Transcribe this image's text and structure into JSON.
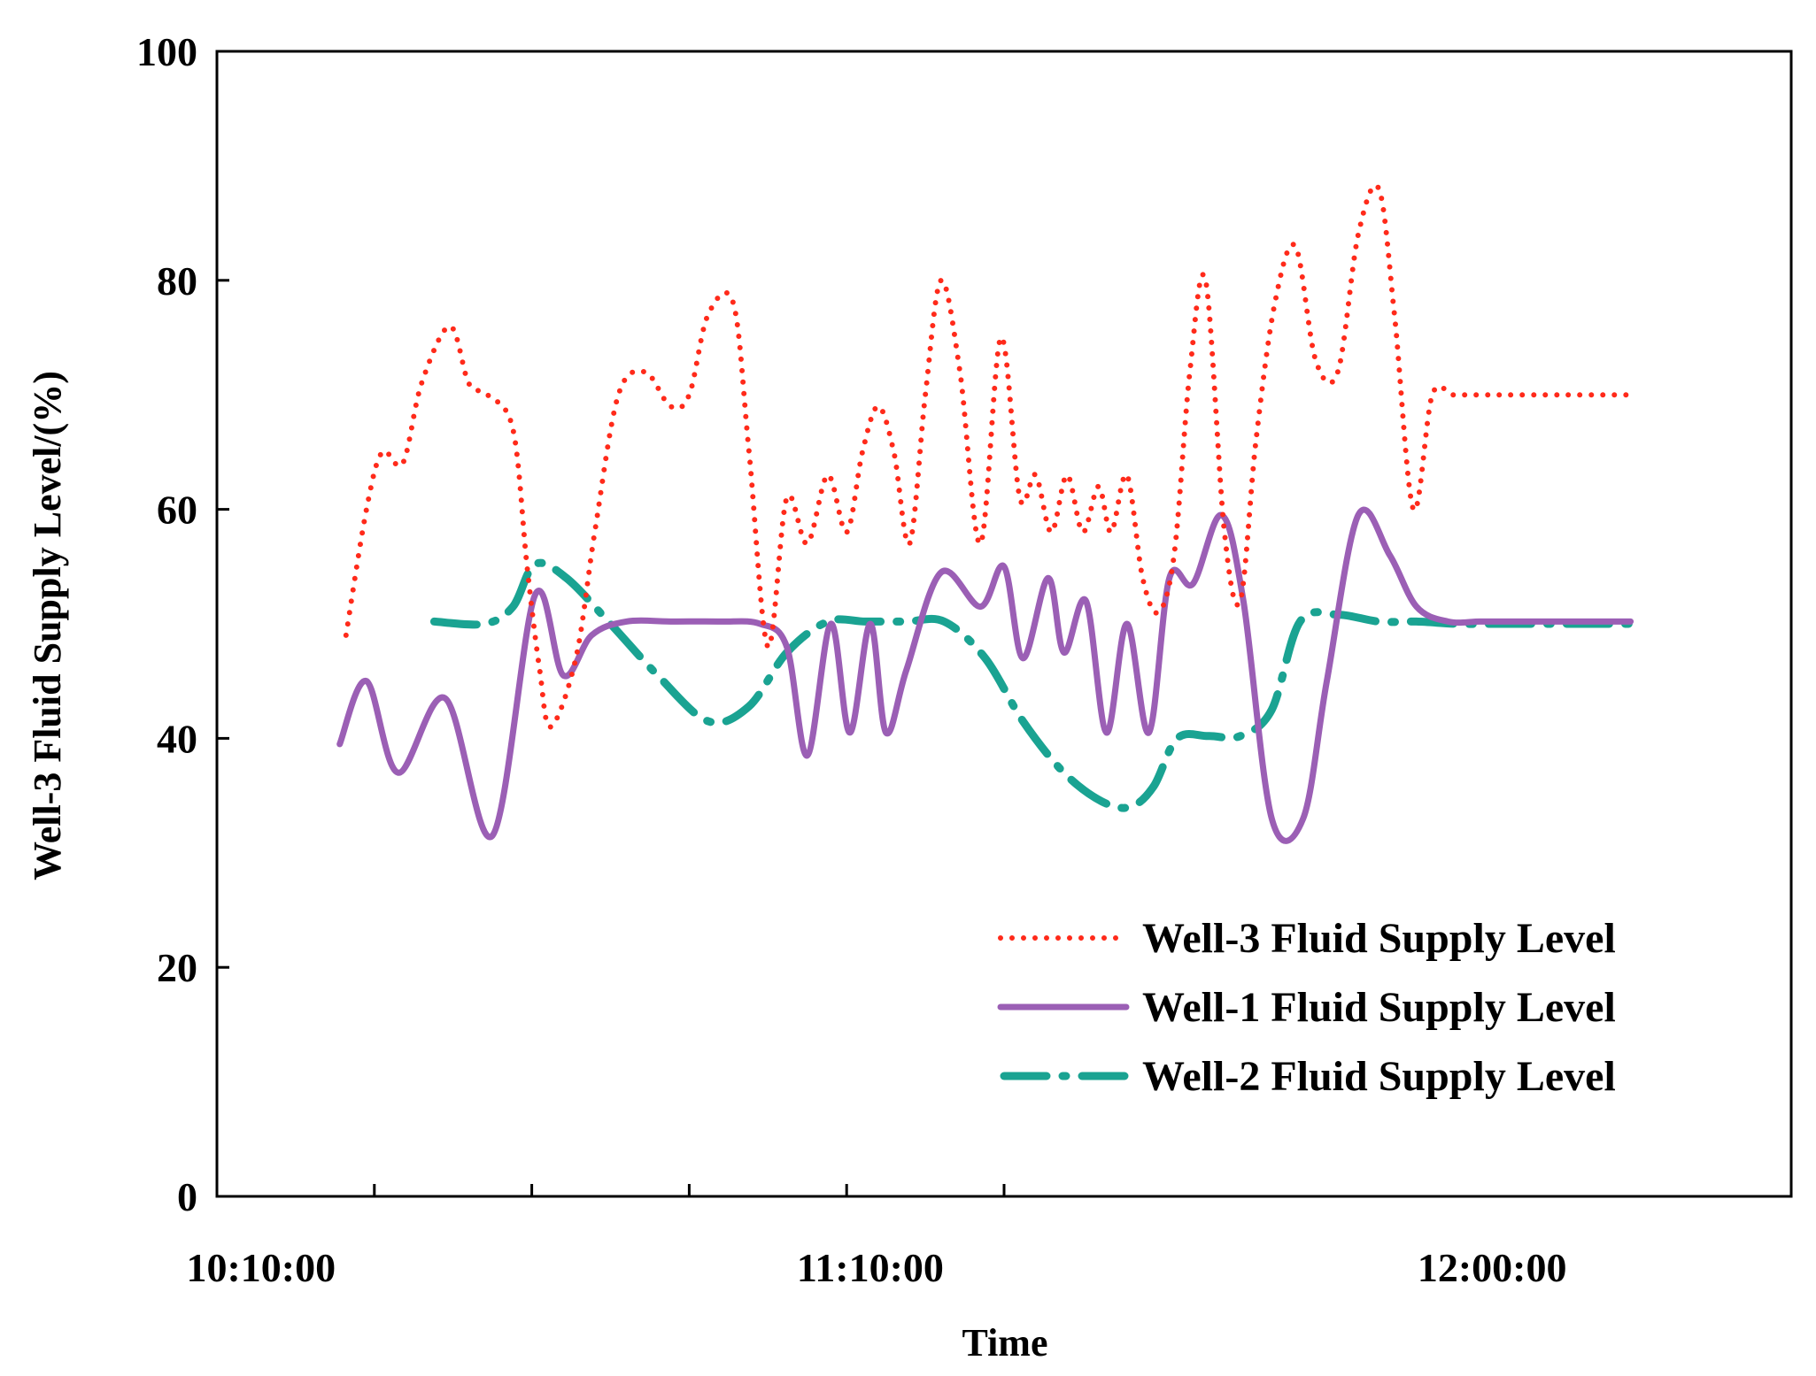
{
  "chart_data": {
    "type": "line",
    "title": "",
    "xlabel": "Time",
    "ylabel": "Well-3 Fluid Supply Level/(%)",
    "xlim": [
      0,
      10
    ],
    "ylim": [
      0,
      100
    ],
    "yticks": [
      0,
      20,
      40,
      60,
      80,
      100
    ],
    "xticks": [
      1,
      2,
      3,
      4,
      5
    ],
    "xtick_labels": [
      {
        "x": 0.28,
        "label": "10:10:00"
      },
      {
        "x": 4.15,
        "label": "11:10:00"
      },
      {
        "x": 8.1,
        "label": "12:00:00"
      }
    ],
    "grid": false,
    "legend_position": "bottom-right",
    "series": [
      {
        "name": "Well-3 Fluid Supply Level",
        "color": "#ff2a1a",
        "style": "dotted",
        "x": [
          0.82,
          0.95,
          1.05,
          1.18,
          1.3,
          1.48,
          1.6,
          1.72,
          1.88,
          1.97,
          2.05,
          2.12,
          2.28,
          2.4,
          2.55,
          2.72,
          2.88,
          3.0,
          3.12,
          3.28,
          3.38,
          3.5,
          3.62,
          3.75,
          3.88,
          4.0,
          4.1,
          4.2,
          4.3,
          4.4,
          4.5,
          4.6,
          4.72,
          4.85,
          4.98,
          5.1,
          5.2,
          5.3,
          5.4,
          5.5,
          5.6,
          5.68,
          5.78,
          5.88,
          5.98,
          6.08,
          6.18,
          6.28,
          6.4,
          6.5,
          6.6,
          6.72,
          6.85,
          6.98,
          7.12,
          7.25,
          7.38,
          7.48,
          7.6,
          7.72,
          7.85,
          7.95,
          8.08,
          8.2,
          8.35,
          8.48,
          8.6,
          8.75,
          8.88,
          8.98
        ],
        "values": [
          49,
          60,
          65,
          64,
          71,
          76,
          71,
          70,
          67,
          55,
          46,
          41,
          47,
          58,
          70,
          72,
          69,
          70,
          77,
          78,
          65,
          48,
          61,
          57,
          63,
          58,
          65,
          69,
          65,
          57,
          70,
          80,
          72,
          57,
          75,
          61,
          63,
          58,
          63,
          58,
          62,
          58,
          63,
          54,
          51,
          56,
          72,
          80,
          58,
          52,
          66,
          78,
          83,
          73,
          72,
          84,
          88,
          77,
          60,
          70,
          70,
          70,
          70,
          70,
          70,
          70,
          70,
          70,
          70,
          70
        ]
      },
      {
        "name": "Well-1 Fluid Supply Level",
        "color": "#9b5fb5",
        "style": "solid",
        "x": [
          0.78,
          0.95,
          1.15,
          1.45,
          1.75,
          2.02,
          2.2,
          2.38,
          2.6,
          2.9,
          3.2,
          3.45,
          3.62,
          3.75,
          3.9,
          4.02,
          4.15,
          4.25,
          4.38,
          4.6,
          4.85,
          5.0,
          5.12,
          5.28,
          5.38,
          5.52,
          5.65,
          5.78,
          5.92,
          6.05,
          6.2,
          6.38,
          6.52,
          6.7,
          6.9,
          7.05,
          7.25,
          7.45,
          7.62,
          7.82,
          8.02,
          8.2,
          8.45,
          8.72,
          8.98
        ],
        "values": [
          39.5,
          45,
          37,
          43.5,
          31.5,
          52.5,
          45.5,
          49,
          50.2,
          50.2,
          50.2,
          50,
          48,
          38.5,
          50,
          40.5,
          50,
          40.5,
          46,
          54.5,
          51.5,
          55,
          47,
          54,
          47.5,
          52,
          40.5,
          50,
          40.5,
          54,
          53.5,
          59.5,
          52,
          33,
          33,
          45,
          59.5,
          56,
          51.5,
          50.2,
          50.2,
          50.2,
          50.2,
          50.2,
          50.2
        ]
      },
      {
        "name": "Well-2 Fluid Supply Level",
        "color": "#1aa392",
        "style": "dashdot",
        "x": [
          1.38,
          1.7,
          1.88,
          2.02,
          2.22,
          2.5,
          2.8,
          3.12,
          3.38,
          3.62,
          3.88,
          4.12,
          4.38,
          4.62,
          4.88,
          5.12,
          5.38,
          5.62,
          5.8,
          5.95,
          6.1,
          6.3,
          6.5,
          6.7,
          6.88,
          7.12,
          7.38,
          7.62,
          7.88,
          8.12,
          8.38,
          8.62,
          8.98
        ],
        "values": [
          50.2,
          50,
          51.5,
          55.2,
          54,
          50,
          45.5,
          41.5,
          42.8,
          47.5,
          50.2,
          50.2,
          50.2,
          50.2,
          47,
          41.5,
          37,
          34.5,
          34,
          35.8,
          40,
          40.2,
          40.2,
          42.5,
          50.2,
          50.8,
          50.2,
          50.2,
          50,
          50,
          50,
          50,
          50
        ]
      }
    ]
  }
}
